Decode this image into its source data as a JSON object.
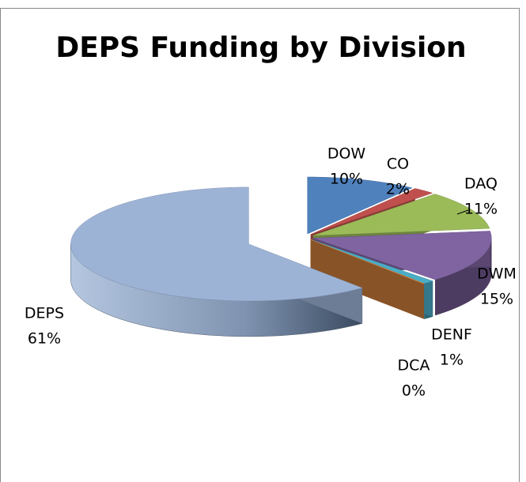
{
  "chart_data": {
    "type": "pie",
    "title": "DEPS Funding by Division",
    "categories": [
      "DOW",
      "CO",
      "DAQ",
      "DWM",
      "DENF",
      "DCA",
      "DEPS"
    ],
    "values": [
      10,
      2,
      11,
      15,
      1,
      0,
      61
    ],
    "value_labels": [
      "10%",
      "2%",
      "11%",
      "15%",
      "1%",
      "0%",
      "61%"
    ],
    "colors": [
      "#4f81bd",
      "#c0504d",
      "#9bbb59",
      "#8064a2",
      "#4bacc6",
      "#f79646",
      "#9db3d6"
    ]
  }
}
